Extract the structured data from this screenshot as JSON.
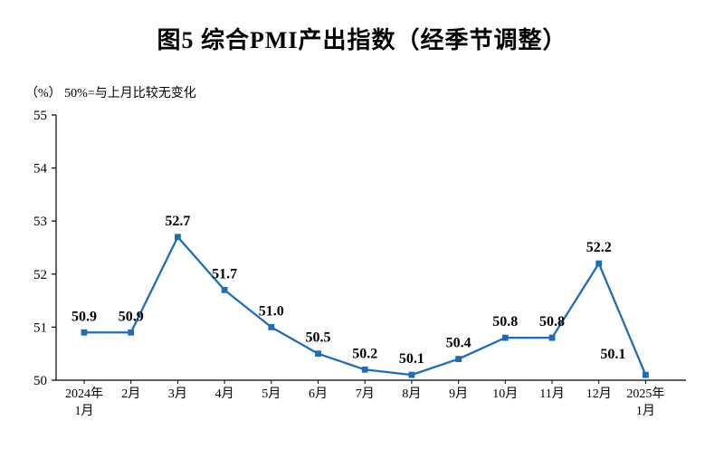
{
  "page": {
    "title": "图5  综合PMI产出指数（经季节调整）",
    "unit_note": "（%） 50%=与上月比较无变化"
  },
  "chart_data": {
    "type": "line",
    "title": "图5  综合PMI产出指数（经季节调整）",
    "subtitle": "（%）50%=与上月比较无变化",
    "series_name": "综合PMI产出指数",
    "categories": [
      "2024年\n1月",
      "2月",
      "3月",
      "4月",
      "5月",
      "6月",
      "7月",
      "8月",
      "9月",
      "10月",
      "11月",
      "12月",
      "2025年\n1月"
    ],
    "values": [
      50.9,
      50.9,
      52.7,
      51.7,
      51.0,
      50.5,
      50.2,
      50.1,
      50.4,
      50.8,
      50.8,
      52.2,
      50.1
    ],
    "ylim": [
      50,
      55
    ],
    "yticks": [
      50,
      51,
      52,
      53,
      54,
      55
    ],
    "grid": false,
    "legend": "none",
    "line_color": "#1f6db5",
    "axis_color": "#000000",
    "marker": "square",
    "data_labels": true,
    "label_decimals": 1,
    "label_offsets": {
      "12": {
        "dx": -36,
        "dy": -5
      }
    }
  }
}
